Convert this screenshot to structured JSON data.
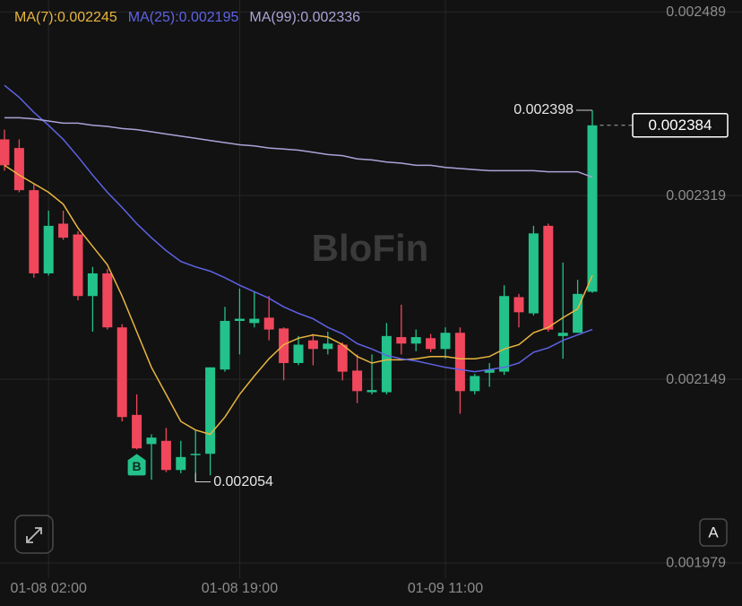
{
  "chart_data": {
    "type": "candlestick",
    "watermark": "BloFin",
    "categories": [
      null,
      null,
      null,
      "01-08 02:00",
      null,
      null,
      null,
      null,
      null,
      null,
      null,
      null,
      null,
      null,
      null,
      null,
      "01-08 19:00",
      null,
      null,
      null,
      null,
      null,
      null,
      null,
      null,
      null,
      null,
      null,
      null,
      null,
      "01-09 11:00",
      null,
      null,
      null,
      null,
      null,
      null,
      null,
      null,
      null,
      null
    ],
    "open": [
      0.002371,
      0.002363,
      0.002324,
      0.002247,
      0.002293,
      0.002283,
      0.002226,
      0.002247,
      0.002197,
      0.002116,
      0.002089,
      0.002092,
      0.002065,
      0.002079,
      0.00208,
      0.002158,
      0.002203,
      0.002201,
      0.002206,
      0.002196,
      0.002164,
      0.002185,
      0.002177,
      0.002181,
      0.002157,
      0.002137,
      0.002137,
      0.002188,
      0.002182,
      0.002187,
      0.002177,
      0.002192,
      0.002138,
      0.002155,
      0.002156,
      0.002225,
      0.00221,
      0.002291,
      0.002189,
      0.002192,
      0.00223
    ],
    "high": [
      0.00238,
      0.002371,
      0.00233,
      0.002305,
      0.002305,
      0.002286,
      0.002253,
      0.002251,
      0.0022,
      0.002135,
      0.002098,
      0.002104,
      0.002092,
      0.002102,
      0.00216,
      0.002216,
      0.002233,
      0.00223,
      0.002226,
      0.002197,
      0.002189,
      0.002191,
      0.002193,
      0.002183,
      0.002172,
      0.002172,
      0.002201,
      0.002218,
      0.002195,
      0.002191,
      0.002197,
      0.002197,
      0.002154,
      0.002164,
      0.002236,
      0.002228,
      0.002291,
      0.002293,
      0.002257,
      0.002241,
      0.002398
    ],
    "low": [
      0.002342,
      0.002322,
      0.002243,
      0.002245,
      0.002278,
      0.002222,
      0.002193,
      0.002195,
      0.00211,
      0.002084,
      0.002056,
      0.002063,
      0.002062,
      0.002054,
      0.00206,
      0.002156,
      0.002172,
      0.002197,
      0.002185,
      0.002148,
      0.002162,
      0.002162,
      0.002172,
      0.002148,
      0.002127,
      0.002135,
      0.002135,
      0.002172,
      0.002175,
      0.002174,
      0.002168,
      0.002117,
      0.002135,
      0.002142,
      0.002153,
      0.002197,
      0.002208,
      0.002193,
      0.002168,
      0.002192,
      0.002229
    ],
    "close": [
      0.002347,
      0.002324,
      0.002247,
      0.002291,
      0.00228,
      0.002226,
      0.002247,
      0.002197,
      0.002114,
      0.002085,
      0.002095,
      0.002065,
      0.002077,
      0.00208,
      0.00216,
      0.002203,
      0.002205,
      0.002205,
      0.002195,
      0.002164,
      0.002181,
      0.002177,
      0.002182,
      0.002156,
      0.002138,
      0.002139,
      0.002189,
      0.002182,
      0.002188,
      0.002177,
      0.002192,
      0.002138,
      0.002152,
      0.002158,
      0.002226,
      0.002211,
      0.002284,
      0.002195,
      0.002192,
      0.002228,
      0.002384
    ],
    "up_color": "#23c28a",
    "down_color": "#f0475c",
    "series": [
      {
        "name": "MA(7):0.002245",
        "color": "#e9b53f",
        "values": [
          0.002347,
          0.002338,
          0.00233,
          0.002322,
          0.002311,
          0.002289,
          0.002272,
          0.002255,
          0.002226,
          0.002193,
          0.00216,
          0.002135,
          0.00211,
          0.002102,
          0.002098,
          0.002114,
          0.002135,
          0.002152,
          0.002168,
          0.002181,
          0.002187,
          0.00219,
          0.002188,
          0.002181,
          0.00217,
          0.002164,
          0.002167,
          0.002167,
          0.002168,
          0.00217,
          0.00217,
          0.002168,
          0.002168,
          0.00217,
          0.002177,
          0.002181,
          0.002192,
          0.002197,
          0.002206,
          0.002214,
          0.002245
        ]
      },
      {
        "name": "MA(25):0.002195",
        "color": "#5f63e6",
        "values": [
          0.002421,
          0.00241,
          0.002396,
          0.002384,
          0.002371,
          0.002355,
          0.002338,
          0.002322,
          0.002308,
          0.002293,
          0.00228,
          0.002268,
          0.002258,
          0.002253,
          0.002249,
          0.002243,
          0.002236,
          0.00223,
          0.002224,
          0.002216,
          0.00221,
          0.002205,
          0.002197,
          0.002191,
          0.002182,
          0.002177,
          0.002171,
          0.002168,
          0.002166,
          0.002163,
          0.00216,
          0.002158,
          0.002156,
          0.002158,
          0.00216,
          0.002164,
          0.002174,
          0.002178,
          0.002185,
          0.00219,
          0.002195
        ]
      },
      {
        "name": "MA(99):0.002336",
        "color": "#aaa3d8",
        "values": [
          0.002391,
          0.002391,
          0.00239,
          0.002388,
          0.002386,
          0.002386,
          0.002384,
          0.002383,
          0.002381,
          0.00238,
          0.002378,
          0.002376,
          0.002374,
          0.002372,
          0.00237,
          0.002368,
          0.002366,
          0.002365,
          0.002363,
          0.002362,
          0.002361,
          0.002359,
          0.002357,
          0.002356,
          0.002353,
          0.002352,
          0.00235,
          0.002349,
          0.002347,
          0.002347,
          0.002345,
          0.002344,
          0.002343,
          0.002342,
          0.002342,
          0.002342,
          0.002342,
          0.002341,
          0.002341,
          0.002341,
          0.002336
        ]
      }
    ],
    "annotations": {
      "high": 0.002398,
      "low": 0.002054,
      "last": 0.002384
    },
    "markers": [
      {
        "text": "B",
        "index": 9
      }
    ],
    "ylim": [
      0.001969,
      0.0025
    ],
    "yticks": [
      0.002489,
      0.002319,
      0.002149,
      0.001979
    ],
    "grid": true
  },
  "controls": {
    "auto_scale": "A"
  }
}
